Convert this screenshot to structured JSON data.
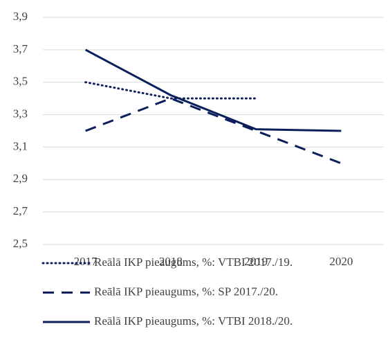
{
  "chart_data": {
    "type": "line",
    "categories": [
      "2017",
      "2018",
      "2019",
      "2020"
    ],
    "series": [
      {
        "name": "Reālā IKP pieaugums, %: VTBI 2017./19.",
        "color": "#0b1f5c",
        "style": "dotted",
        "values": [
          3.5,
          3.4,
          3.4,
          null
        ]
      },
      {
        "name": "Reālā IKP pieaugums, %: SP 2017./20.",
        "color": "#0b1f5c",
        "style": "dashed",
        "values": [
          3.2,
          3.4,
          3.2,
          3.0
        ]
      },
      {
        "name": "Reālā IKP pieaugums, %: VTBI 2018./20.",
        "color": "#0b1f5c",
        "style": "solid",
        "values": [
          3.7,
          3.42,
          3.21,
          3.2
        ]
      }
    ],
    "ylim": [
      2.5,
      3.9
    ],
    "yticks": [
      {
        "value": 2.5,
        "label": "2,5"
      },
      {
        "value": 2.7,
        "label": "2,7"
      },
      {
        "value": 2.9,
        "label": "2,9"
      },
      {
        "value": 3.1,
        "label": "3,1"
      },
      {
        "value": 3.3,
        "label": "3,3"
      },
      {
        "value": 3.5,
        "label": "3,5"
      },
      {
        "value": 3.7,
        "label": "3,7"
      },
      {
        "value": 3.9,
        "label": "3,9"
      }
    ],
    "grid": true,
    "legend": "bottom"
  }
}
